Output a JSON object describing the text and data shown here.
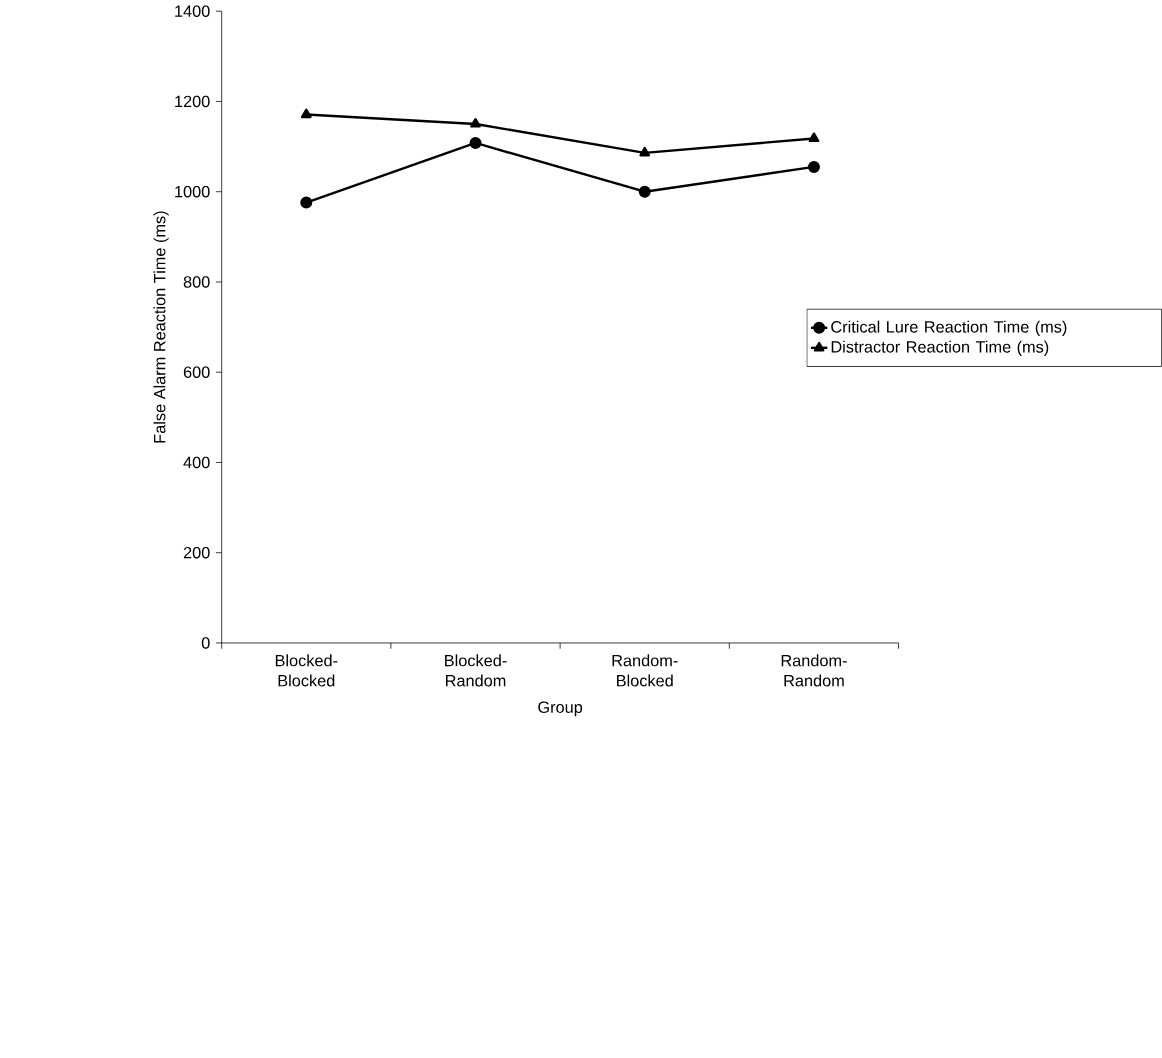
{
  "chart_data": {
    "type": "line",
    "xlabel": "Group",
    "ylabel": "False Alarm Reaction Time (ms)",
    "categories": [
      "Blocked-Blocked",
      "Blocked-Random",
      "Random-Blocked",
      "Random-Random"
    ],
    "series": [
      {
        "name": "Critical Lure Reaction Time (ms)",
        "color": "#000000",
        "marker": "circle",
        "values": [
          976,
          1108,
          1000,
          1055
        ]
      },
      {
        "name": "Distractor Reaction Time (ms)",
        "color": "#000000",
        "marker": "triangle",
        "values": [
          1171,
          1150,
          1086,
          1118
        ]
      }
    ],
    "ylim": [
      0,
      1400
    ],
    "yticks": [
      0,
      200,
      400,
      600,
      800,
      1000,
      1200,
      1400
    ],
    "grid": false,
    "legend": "right",
    "line_style": "solid"
  }
}
